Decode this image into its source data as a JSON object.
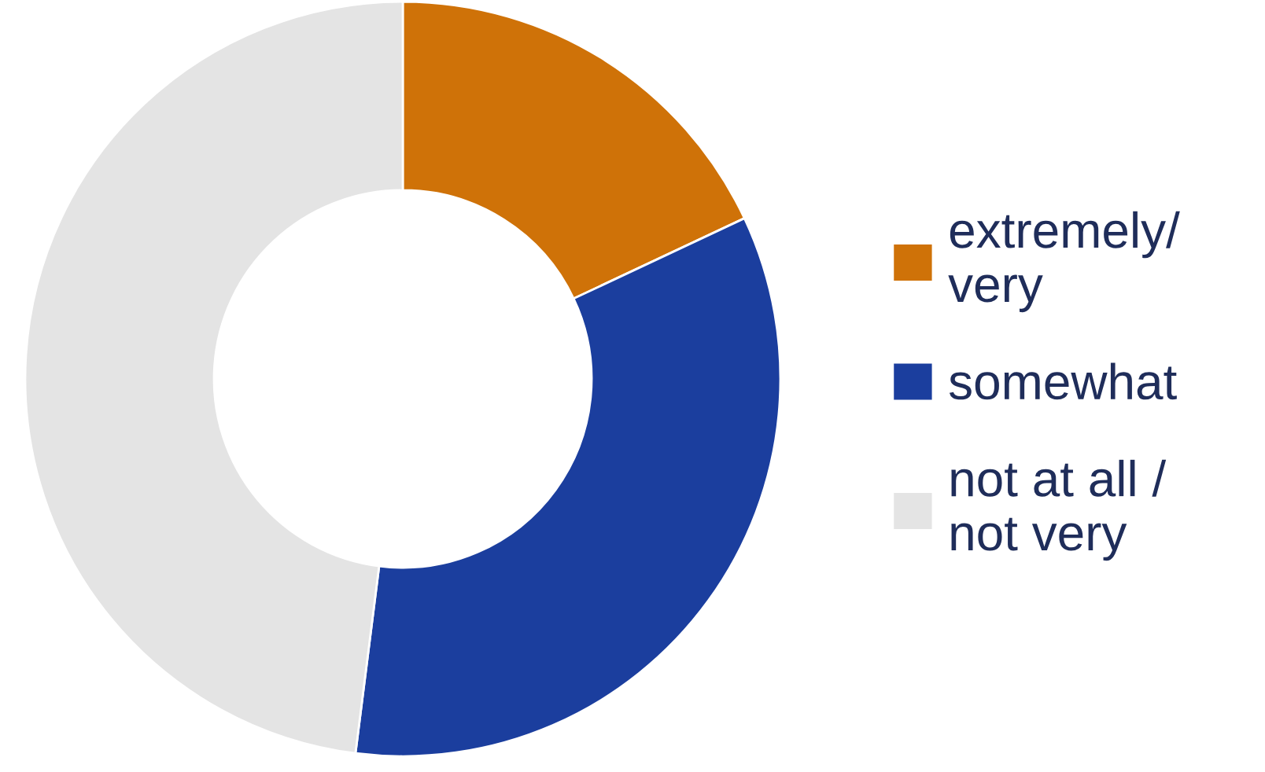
{
  "chart_data": {
    "type": "donut",
    "categories": [
      "extremely/\nvery",
      "somewhat",
      "not at all /\nnot very"
    ],
    "values": [
      18,
      34,
      48
    ],
    "colors": [
      "#cf7208",
      "#1b3e9e",
      "#e4e4e4"
    ],
    "legend": "right"
  }
}
